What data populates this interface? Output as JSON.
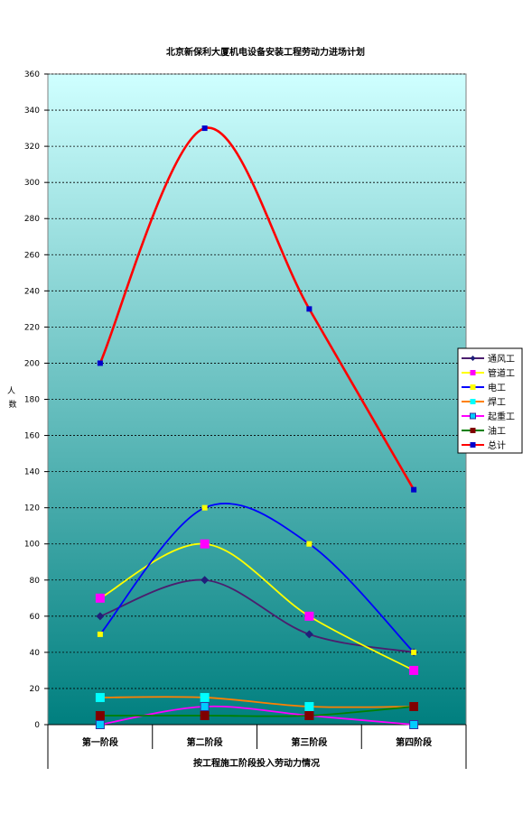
{
  "chart_data": {
    "type": "line",
    "title": "北京新保利大厦机电设备安装工程劳动力进场计划",
    "xlabel": "按工程施工阶段投入劳动力情况",
    "ylabel": "人数",
    "categories": [
      "第一阶段",
      "第二阶段",
      "第三阶段",
      "第四阶段"
    ],
    "ylim": [
      0,
      360
    ],
    "ytick_step": 20,
    "grid": true,
    "legend_position": "right",
    "series": [
      {
        "name": "通风工",
        "values": [
          60,
          80,
          50,
          40
        ],
        "color": "#4B1E6E",
        "marker": "diamond",
        "marker_color": "#1F1F7A"
      },
      {
        "name": "管道工",
        "values": [
          70,
          100,
          60,
          30
        ],
        "color": "#FFFF00",
        "marker": "square",
        "marker_color": "#FF00FF"
      },
      {
        "name": "电工",
        "values": [
          50,
          120,
          100,
          40
        ],
        "color": "#0000FF",
        "marker": "square",
        "marker_color": "#FFFF00"
      },
      {
        "name": "焊工",
        "values": [
          15,
          15,
          10,
          10
        ],
        "color": "#FF8000",
        "marker": "square",
        "marker_color": "#00FFFF"
      },
      {
        "name": "起重工",
        "values": [
          0,
          10,
          5,
          0
        ],
        "color": "#FF00FF",
        "marker": "square-outline",
        "marker_color": "#00CCFF"
      },
      {
        "name": "油工",
        "values": [
          5,
          5,
          5,
          10
        ],
        "color": "#008000",
        "marker": "square",
        "marker_color": "#800000"
      },
      {
        "name": "总计",
        "values": [
          200,
          330,
          230,
          130
        ],
        "color": "#FF0000",
        "marker": "square",
        "marker_color": "#0000CC"
      }
    ]
  }
}
